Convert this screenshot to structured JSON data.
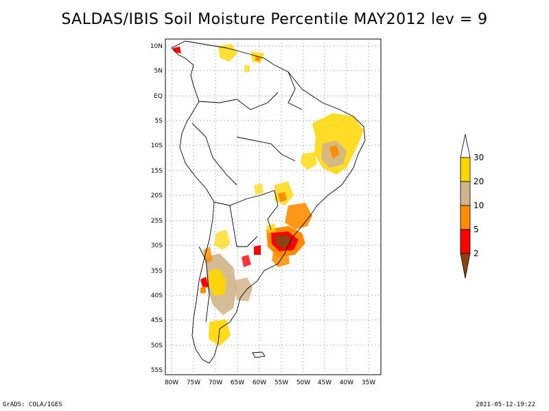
{
  "header": {
    "title": "SALDAS/IBIS Soil Moisture Percentile MAY2012 lev = 9"
  },
  "footer": {
    "left_text": "GrADS: COLA/IGES",
    "right_text": "2021-05-12-19:22"
  },
  "map": {
    "lat_ticks": [
      "10N",
      "5N",
      "EQ",
      "5S",
      "10S",
      "15S",
      "20S",
      "25S",
      "30S",
      "35S",
      "40S",
      "45S",
      "50S",
      "55S"
    ],
    "lon_ticks": [
      "80W",
      "75W",
      "70W",
      "65W",
      "60W",
      "55W",
      "50W",
      "45W",
      "40W",
      "35W"
    ],
    "lat_range": [
      -56,
      12
    ],
    "lon_range": [
      -81,
      -33
    ],
    "grid": true,
    "region": "South America"
  },
  "legend": {
    "labels": [
      "30",
      "20",
      "10",
      "5",
      "2"
    ],
    "colors": {
      "above_30": "#ffffff",
      "20_30": "#ffd700",
      "10_20": "#d2b48c",
      "5_10": "#ff8c00",
      "2_5": "#ff0000",
      "below_2": "#8b4513"
    }
  }
}
